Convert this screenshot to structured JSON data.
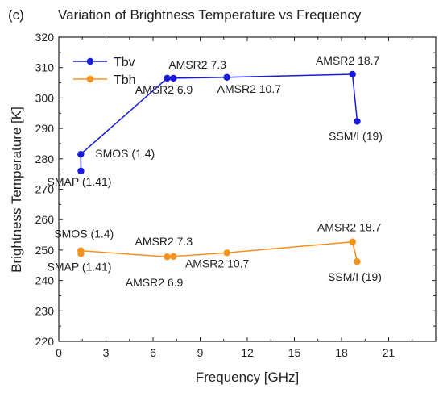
{
  "chart_data": {
    "type": "line",
    "panel_label": "(c)",
    "title": "Variation of Brightness Temperature vs Frequency",
    "xlabel": "Frequency [GHz]",
    "ylabel": "Brightness Temperature [K]",
    "xlim": [
      0,
      24
    ],
    "ylim": [
      220,
      320
    ],
    "xticks": [
      0,
      3,
      6,
      9,
      12,
      15,
      18,
      21
    ],
    "yticks": [
      220,
      230,
      240,
      250,
      260,
      270,
      280,
      290,
      300,
      310,
      320
    ],
    "grid": false,
    "legend_position": "top-left",
    "series": [
      {
        "name": "Tbv",
        "color": "#1a1adb",
        "x": [
          1.41,
          1.4,
          6.9,
          7.3,
          10.7,
          18.7,
          19
        ],
        "y": [
          276,
          281.5,
          306.5,
          306.5,
          306.8,
          307.8,
          292.3
        ],
        "labels": [
          "SMAP (1.41)",
          "SMOS (1.4)",
          "AMSR2 6.9",
          "AMSR2 7.3",
          "AMSR2 10.7",
          "AMSR2 18.7",
          "SSM/I (19)"
        ]
      },
      {
        "name": "Tbh",
        "color": "#f5921e",
        "x": [
          1.41,
          1.4,
          6.9,
          7.3,
          10.7,
          18.7,
          19
        ],
        "y": [
          248.8,
          249.8,
          247.8,
          247.9,
          249.1,
          252.7,
          246.2
        ],
        "labels": [
          "SMAP (1.41)",
          "SMOS (1.4)",
          "AMSR2 6.9",
          "AMSR2 7.3",
          "AMSR2 10.7",
          "AMSR2 18.7",
          "SSM/I (19)"
        ]
      }
    ]
  }
}
